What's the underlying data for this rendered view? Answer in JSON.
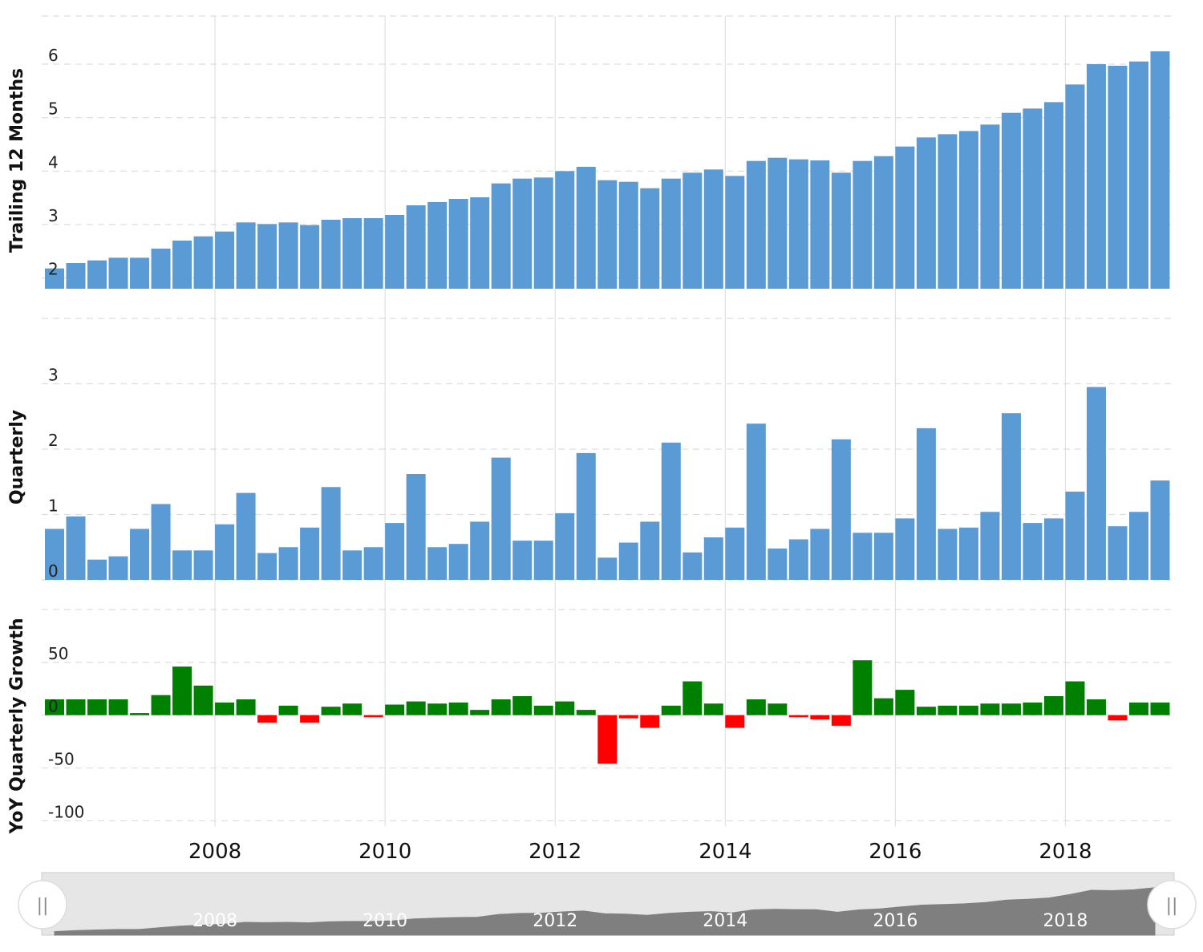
{
  "chart_data": [
    {
      "type": "bar",
      "ylabel": "Trailing 12 Months",
      "yticks": [
        2,
        3,
        4,
        5,
        6
      ],
      "ylim": [
        1.8,
        6.9
      ],
      "bar_color": "#5b9bd5",
      "values": [
        2.18,
        2.28,
        2.33,
        2.38,
        2.38,
        2.55,
        2.7,
        2.78,
        2.87,
        3.04,
        3.01,
        3.04,
        2.99,
        3.09,
        3.12,
        3.12,
        3.18,
        3.36,
        3.42,
        3.48,
        3.51,
        3.77,
        3.86,
        3.88,
        4.0,
        4.08,
        3.83,
        3.8,
        3.68,
        3.86,
        3.97,
        4.03,
        3.91,
        4.19,
        4.25,
        4.22,
        4.2,
        3.97,
        4.19,
        4.28,
        4.46,
        4.63,
        4.69,
        4.75,
        4.87,
        5.09,
        5.17,
        5.29,
        5.62,
        6.0,
        5.97,
        6.05,
        6.24
      ]
    },
    {
      "type": "bar",
      "ylabel": "Quarterly",
      "yticks": [
        0,
        1,
        2,
        3
      ],
      "ylim": [
        0,
        4.0
      ],
      "bar_color": "#5b9bd5",
      "values": [
        0.78,
        0.97,
        0.31,
        0.36,
        0.78,
        1.16,
        0.45,
        0.45,
        0.85,
        1.33,
        0.41,
        0.5,
        0.8,
        1.42,
        0.45,
        0.5,
        0.87,
        1.62,
        0.5,
        0.55,
        0.89,
        1.87,
        0.6,
        0.6,
        1.02,
        1.94,
        0.34,
        0.57,
        0.89,
        2.1,
        0.42,
        0.65,
        0.8,
        2.39,
        0.48,
        0.62,
        0.78,
        2.15,
        0.72,
        0.72,
        0.94,
        2.32,
        0.78,
        0.8,
        1.04,
        2.55,
        0.87,
        0.94,
        1.35,
        2.95,
        0.82,
        1.04,
        1.52
      ]
    },
    {
      "type": "bar",
      "ylabel": "YoY Quarterly Growth",
      "yticks": [
        50,
        0,
        -50,
        -100
      ],
      "ylim": [
        -105,
        100
      ],
      "positive_color": "#008000",
      "negative_color": "#ff0000",
      "values": [
        15,
        15,
        15,
        15,
        2,
        19,
        46,
        28,
        12,
        15,
        -7,
        9,
        -7,
        8,
        11,
        -2,
        10,
        13,
        11,
        12,
        5,
        15,
        18,
        9,
        13,
        5,
        -46,
        -3,
        -12,
        9,
        32,
        11,
        -12,
        15,
        11,
        -2,
        -4,
        -10,
        52,
        16,
        24,
        8,
        9,
        9,
        11,
        11,
        12,
        18,
        32,
        15,
        -5,
        12,
        12
      ]
    }
  ],
  "x_axis": {
    "ticks": [
      "2008",
      "2010",
      "2012",
      "2014",
      "2016",
      "2018"
    ],
    "tick_years": [
      2008,
      2010,
      2012,
      2014,
      2016,
      2018
    ],
    "range": [
      2006.0,
      2019.25
    ]
  },
  "navigator": {
    "labels": [
      "2008",
      "2010",
      "2012",
      "2014",
      "2016",
      "2018"
    ],
    "left_handle_icon": "grip-lines-icon",
    "right_handle_icon": "grip-lines-icon",
    "handle_glyph": "||",
    "area_color": "#7f7f7f"
  },
  "colors": {
    "grid": "#dddddd",
    "vertical_grid": "#e0e0e0"
  }
}
